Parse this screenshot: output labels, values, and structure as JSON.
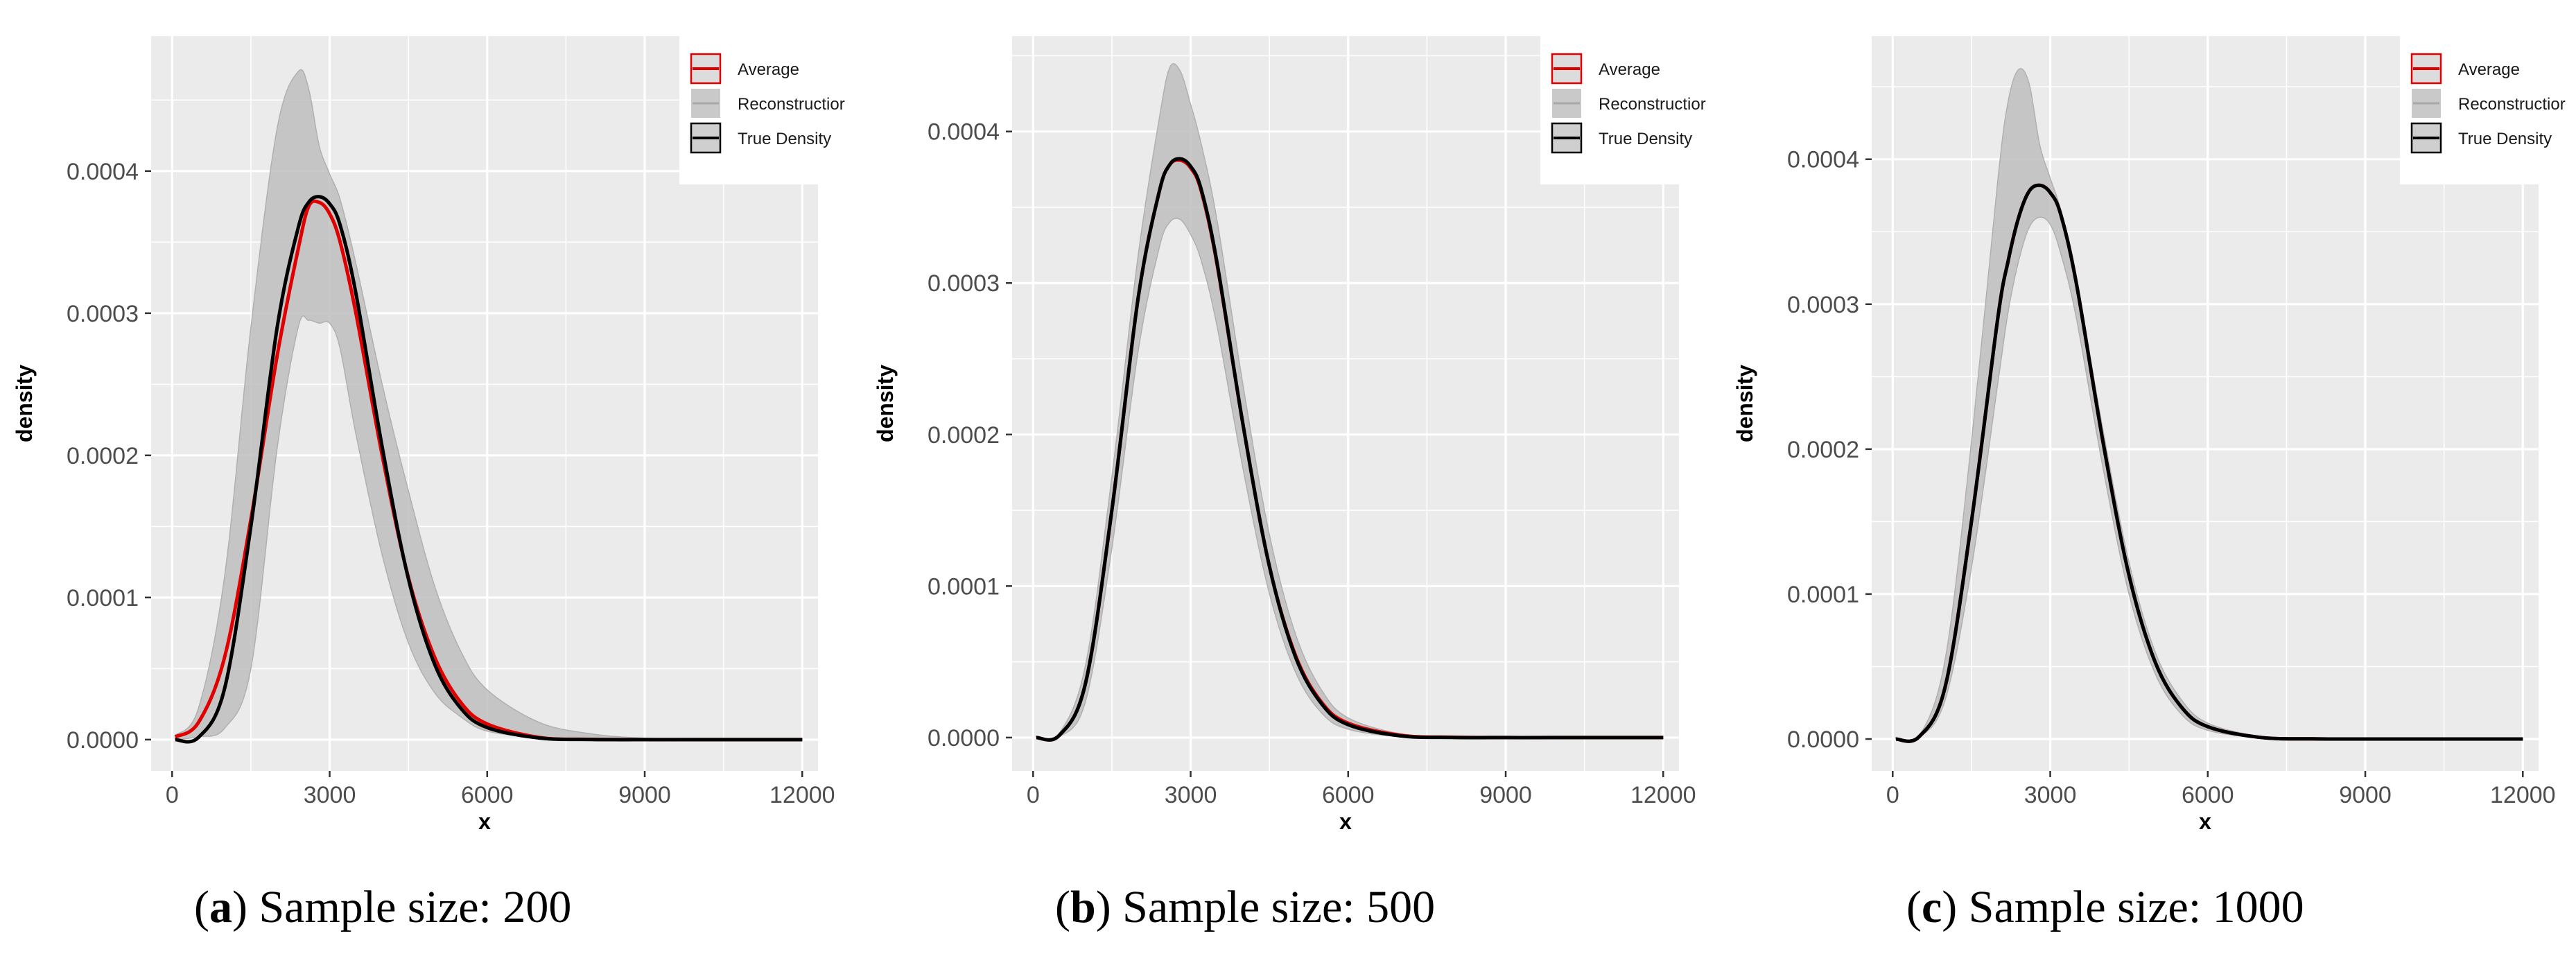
{
  "colors": {
    "panel_bg": "#EBEBEB",
    "grid": "#FFFFFF",
    "band": "#BEBEBE",
    "average": "#E00000",
    "true_density": "#000000"
  },
  "legend": {
    "items": [
      {
        "label": "Average",
        "style": "average"
      },
      {
        "label": "Reconstructior",
        "style": "band"
      },
      {
        "label": "True Density",
        "style": "true"
      }
    ],
    "placement": "top-right"
  },
  "chart_data": [
    {
      "type": "area",
      "caption_letter": "a",
      "caption_rest": ") Sample size: 200",
      "xlabel": "x",
      "ylabel": "density",
      "xticks": [
        "0",
        "3000",
        "6000",
        "9000",
        "12000"
      ],
      "yticks": [
        "0.0000",
        "0.0001",
        "0.0002",
        "0.0003",
        "0.0004"
      ],
      "xlim": [
        -400,
        12300
      ],
      "ylim": [
        -2.2e-05,
        0.000495
      ],
      "grid": true,
      "x": [
        60,
        500,
        1000,
        1500,
        2000,
        2400,
        2600,
        2800,
        3000,
        3200,
        3500,
        4000,
        4500,
        5000,
        5500,
        6000,
        7000,
        8000,
        9000,
        10000,
        12000
      ],
      "series": [
        {
          "name": "Reconstructior",
          "role": "band_upper",
          "values": [
            3e-06,
            2.2e-05,
            0.000115,
            0.00029,
            0.00043,
            0.00047,
            0.000458,
            0.000418,
            0.000398,
            0.00038,
            0.000335,
            0.00025,
            0.000175,
            0.000108,
            6.2e-05,
            3.5e-05,
            1.2e-05,
            4e-06,
            1e-06,
            5e-07,
            0
          ]
        },
        {
          "name": "Reconstructior",
          "role": "band_lower",
          "values": [
            0,
            2e-06,
            8e-06,
            5e-05,
            0.000205,
            0.00029,
            0.000295,
            0.000293,
            0.000293,
            0.000275,
            0.000215,
            0.00013,
            6.8e-05,
            3.3e-05,
            1.6e-05,
            6e-06,
            1.5e-06,
            5e-07,
            0,
            0,
            0
          ]
        },
        {
          "name": "Average",
          "role": "average",
          "values": [
            2e-06,
            1.2e-05,
            5.8e-05,
            0.000155,
            0.00027,
            0.000345,
            0.000375,
            0.000378,
            0.00037,
            0.00035,
            0.0003,
            0.0002,
            0.000114,
            5.8e-05,
            2.6e-05,
            1.1e-05,
            1.5e-06,
            2e-07,
            0,
            0,
            0
          ]
        },
        {
          "name": "True Density",
          "role": "true",
          "values": [
            0,
            1.5e-06,
            3.6e-05,
            0.00015,
            0.00029,
            0.00036,
            0.000378,
            0.000382,
            0.000377,
            0.000362,
            0.000314,
            0.000206,
            0.000113,
            5.3e-05,
            2.2e-05,
            8.5e-06,
            1.1e-06,
            1e-07,
            0,
            0,
            0
          ]
        }
      ]
    },
    {
      "type": "area",
      "caption_letter": "b",
      "caption_rest": ") Sample size: 500",
      "xlabel": "x",
      "ylabel": "density",
      "xticks": [
        "0",
        "3000",
        "6000",
        "9000",
        "12000"
      ],
      "yticks": [
        "0.0000",
        "0.0001",
        "0.0002",
        "0.0003",
        "0.0004"
      ],
      "xlim": [
        -400,
        12300
      ],
      "ylim": [
        -2.2e-05,
        0.000463
      ],
      "grid": true,
      "x": [
        60,
        500,
        1000,
        1500,
        2000,
        2400,
        2600,
        2800,
        3000,
        3200,
        3500,
        4000,
        4500,
        5000,
        5500,
        6000,
        7000,
        8000,
        9000,
        10000,
        12000
      ],
      "series": [
        {
          "name": "Reconstructior",
          "role": "band_upper",
          "values": [
            0,
            3e-06,
            4.8e-05,
            0.000172,
            0.000318,
            0.000408,
            0.000442,
            0.00044,
            0.000418,
            0.000392,
            0.000342,
            0.000232,
            0.000134,
            6.8e-05,
            3.1e-05,
            1.3e-05,
            2.5e-06,
            4e-07,
            0,
            0,
            0
          ]
        },
        {
          "name": "Reconstructior",
          "role": "band_lower",
          "values": [
            0,
            5e-07,
            2.4e-05,
            0.000125,
            0.000255,
            0.000323,
            0.00034,
            0.000342,
            0.000332,
            0.000315,
            0.000272,
            0.000177,
            9.5e-05,
            4.3e-05,
            1.6e-05,
            5.5e-06,
            5e-07,
            0,
            0,
            0,
            0
          ]
        },
        {
          "name": "Average",
          "role": "average",
          "values": [
            0,
            1.5e-06,
            3.6e-05,
            0.00015,
            0.00029,
            0.00036,
            0.000378,
            0.000381,
            0.000376,
            0.000361,
            0.000313,
            0.000206,
            0.000113,
            5.4e-05,
            2.3e-05,
            9.5e-06,
            1.5e-06,
            2e-07,
            0,
            0,
            0
          ]
        },
        {
          "name": "True Density",
          "role": "true",
          "values": [
            0,
            1.5e-06,
            3.6e-05,
            0.00015,
            0.00029,
            0.00036,
            0.000378,
            0.000382,
            0.000377,
            0.000362,
            0.000314,
            0.000206,
            0.000113,
            5.3e-05,
            2.2e-05,
            8.5e-06,
            1.1e-06,
            1e-07,
            0,
            0,
            0
          ]
        }
      ]
    },
    {
      "type": "area",
      "caption_letter": "c",
      "caption_rest": ") Sample size: 1000",
      "xlabel": "x",
      "ylabel": "density",
      "xticks": [
        "0",
        "3000",
        "6000",
        "9000",
        "12000"
      ],
      "yticks": [
        "0.0000",
        "0.0001",
        "0.0002",
        "0.0003",
        "0.0004"
      ],
      "xlim": [
        -400,
        12300
      ],
      "ylim": [
        -2.2e-05,
        0.000485
      ],
      "grid": true,
      "x": [
        60,
        500,
        1000,
        1500,
        2000,
        2200,
        2400,
        2600,
        2800,
        3000,
        3200,
        3500,
        4000,
        4500,
        5000,
        5500,
        6000,
        7000,
        8000,
        9000,
        10000,
        12000
      ],
      "series": [
        {
          "name": "Reconstructior",
          "role": "band_upper",
          "values": [
            0,
            2e-06,
            5.5e-05,
            0.000205,
            0.000385,
            0.00044,
            0.000462,
            0.000452,
            0.00041,
            0.000387,
            0.000365,
            0.000318,
            0.000214,
            0.000122,
            6e-05,
            2.7e-05,
            1.1e-05,
            1.8e-06,
            3e-07,
            0,
            0,
            0
          ]
        },
        {
          "name": "Reconstructior",
          "role": "band_lower",
          "values": [
            0,
            1e-06,
            2.7e-05,
            0.000118,
            0.000245,
            0.000295,
            0.00033,
            0.000353,
            0.00036,
            0.000355,
            0.000335,
            0.00029,
            0.000188,
            0.0001,
            4.5e-05,
            1.7e-05,
            6e-06,
            7e-07,
            0,
            0,
            0,
            0
          ]
        },
        {
          "name": "Average",
          "role": "average",
          "values": [
            0,
            1.5e-06,
            3.6e-05,
            0.00015,
            0.00029,
            0.00033,
            0.00036,
            0.000378,
            0.000382,
            0.000377,
            0.000362,
            0.000314,
            0.000206,
            0.000113,
            5.3e-05,
            2.2e-05,
            8.5e-06,
            1.1e-06,
            1e-07,
            0,
            0,
            0
          ]
        },
        {
          "name": "True Density",
          "role": "true",
          "values": [
            0,
            1.5e-06,
            3.6e-05,
            0.00015,
            0.00029,
            0.00033,
            0.00036,
            0.000378,
            0.000382,
            0.000377,
            0.000362,
            0.000314,
            0.000206,
            0.000113,
            5.3e-05,
            2.2e-05,
            8.5e-06,
            1.1e-06,
            1e-07,
            0,
            0,
            0
          ]
        }
      ]
    }
  ]
}
